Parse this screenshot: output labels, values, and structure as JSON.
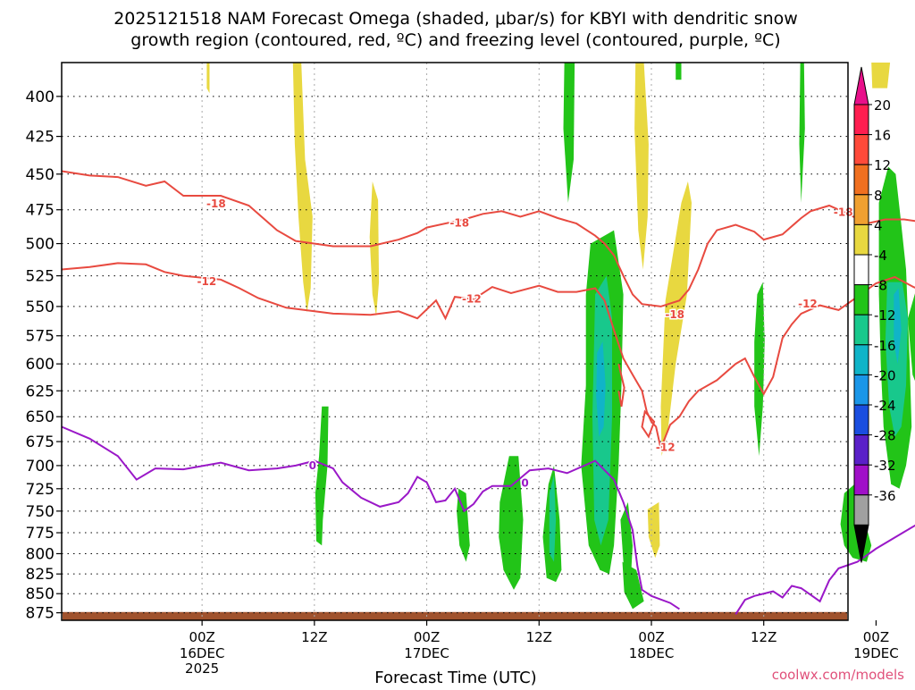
{
  "chart_data": {
    "type": "heatmap",
    "title_line1": "2025121518 NAM Forecast Omega (shaded, μbar/s) for KBYI with dendritic snow",
    "title_line2": "growth region (contoured, red, ºC) and freezing level (contoured, purple, ºC)",
    "xlabel": "Forecast Time (UTC)",
    "credit": "coolwx.com/models",
    "y_axis": {
      "unit": "hPa",
      "ticks": [
        400,
        425,
        450,
        475,
        500,
        525,
        550,
        575,
        600,
        625,
        650,
        675,
        700,
        725,
        750,
        775,
        800,
        825,
        850,
        875
      ],
      "range": [
        380,
        885
      ],
      "scale": "log-pressure"
    },
    "x_axis": {
      "unit": "forecast hour",
      "range": [
        -15,
        69
      ],
      "ticks": [
        {
          "hour": 0,
          "label": "00Z",
          "sub1": "16DEC",
          "sub2": "2025"
        },
        {
          "hour": 12,
          "label": "12Z",
          "sub1": "",
          "sub2": ""
        },
        {
          "hour": 24,
          "label": "00Z",
          "sub1": "17DEC",
          "sub2": ""
        },
        {
          "hour": 36,
          "label": "12Z",
          "sub1": "",
          "sub2": ""
        },
        {
          "hour": 48,
          "label": "00Z",
          "sub1": "18DEC",
          "sub2": ""
        },
        {
          "hour": 60,
          "label": "12Z",
          "sub1": "",
          "sub2": ""
        },
        {
          "hour": 72,
          "label": "00Z",
          "sub1": "19DEC",
          "sub2": ""
        }
      ]
    },
    "grid": true,
    "colorbar": {
      "levels": [
        20,
        16,
        12,
        8,
        4,
        -4,
        -8,
        -12,
        -16,
        -20,
        -24,
        -28,
        -32,
        -36
      ],
      "colors": [
        "#ff1e50",
        "#ff4a3a",
        "#f07020",
        "#f0a030",
        "#e8d840",
        "#ffffff",
        "#22c418",
        "#18c88c",
        "#10b4c8",
        "#1a96e8",
        "#1a4ee0",
        "#5a20c8",
        "#a010c8",
        "#a0a0a0"
      ],
      "top_color": "#e8108a",
      "bottom_color": "#000000"
    },
    "contour_labels": {
      "dgz": [
        "-18",
        "-12"
      ],
      "freezing": [
        "0"
      ]
    },
    "colors": {
      "dgz_contour": "#e84a40",
      "freezing_contour": "#9a18c8",
      "terrain": "#a0522d",
      "grid": "#000000"
    }
  }
}
